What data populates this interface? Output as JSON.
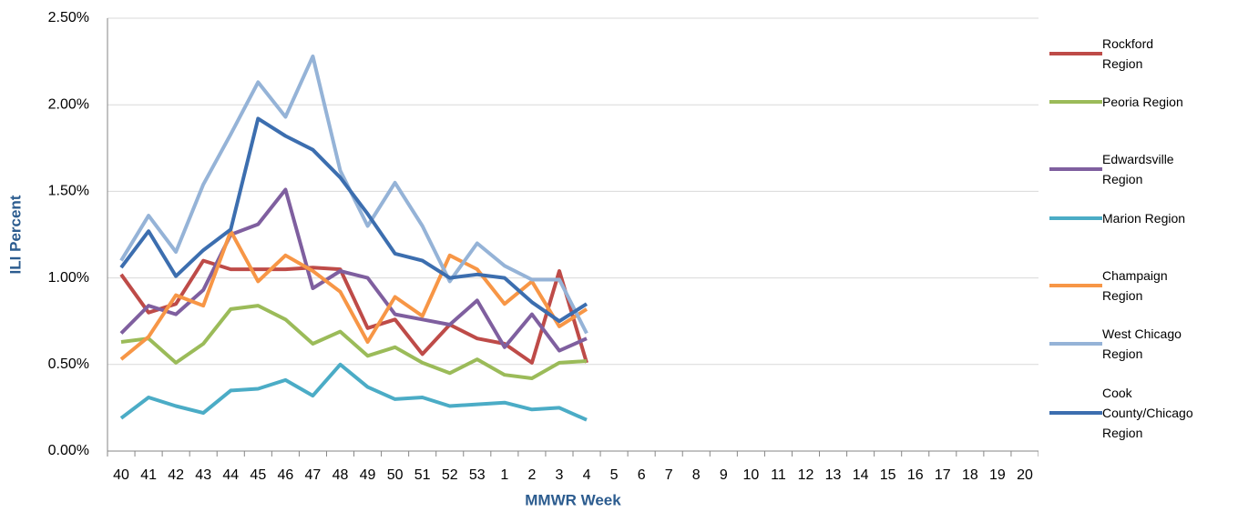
{
  "chart_data": {
    "type": "line",
    "x_label": "MMWR Week",
    "y_label": "ILI Percent",
    "categories": [
      "40",
      "41",
      "42",
      "43",
      "44",
      "45",
      "46",
      "47",
      "48",
      "49",
      "50",
      "51",
      "52",
      "53",
      "1",
      "2",
      "3",
      "4",
      "5",
      "6",
      "7",
      "8",
      "9",
      "10",
      "11",
      "12",
      "13",
      "14",
      "15",
      "16",
      "17",
      "18",
      "19",
      "20"
    ],
    "ylim": [
      0,
      2.5
    ],
    "yticks": [
      {
        "value": 0,
        "label": "0.00%"
      },
      {
        "value": 0.5,
        "label": "0.50%"
      },
      {
        "value": 1,
        "label": "1.00%"
      },
      {
        "value": 1.5,
        "label": "1.50%"
      },
      {
        "value": 2,
        "label": "2.00%"
      },
      {
        "value": 2.5,
        "label": "2.50%"
      }
    ],
    "grid": true,
    "legend": "right",
    "series": [
      {
        "name": "Rockford Region",
        "color": "#be4b48",
        "values": [
          1.02,
          0.8,
          0.85,
          1.1,
          1.05,
          1.05,
          1.05,
          1.06,
          1.05,
          0.71,
          0.76,
          0.56,
          0.73,
          0.65,
          0.62,
          0.51,
          1.04,
          0.51,
          null,
          null,
          null,
          null,
          null,
          null,
          null,
          null,
          null,
          null,
          null,
          null,
          null,
          null,
          null,
          null
        ]
      },
      {
        "name": "Peoria Region",
        "color": "#9bbb59",
        "values": [
          0.63,
          0.65,
          0.51,
          0.62,
          0.82,
          0.84,
          0.76,
          0.62,
          0.69,
          0.55,
          0.6,
          0.51,
          0.45,
          0.53,
          0.44,
          0.42,
          0.51,
          0.52,
          null,
          null,
          null,
          null,
          null,
          null,
          null,
          null,
          null,
          null,
          null,
          null,
          null,
          null,
          null,
          null
        ]
      },
      {
        "name": "Edwardsville Region",
        "color": "#7f5f9f",
        "values": [
          0.68,
          0.84,
          0.79,
          0.93,
          1.25,
          1.31,
          1.51,
          0.94,
          1.04,
          1.0,
          0.79,
          0.76,
          0.73,
          0.87,
          0.6,
          0.79,
          0.58,
          0.65,
          null,
          null,
          null,
          null,
          null,
          null,
          null,
          null,
          null,
          null,
          null,
          null,
          null,
          null,
          null,
          null
        ]
      },
      {
        "name": "Marion Region",
        "color": "#4bacc6",
        "values": [
          0.19,
          0.31,
          0.26,
          0.22,
          0.35,
          0.36,
          0.41,
          0.32,
          0.5,
          0.37,
          0.3,
          0.31,
          0.26,
          0.27,
          0.28,
          0.24,
          0.25,
          0.18,
          null,
          null,
          null,
          null,
          null,
          null,
          null,
          null,
          null,
          null,
          null,
          null,
          null,
          null,
          null,
          null
        ]
      },
      {
        "name": "Champaign Region",
        "color": "#f79646",
        "values": [
          0.53,
          0.66,
          0.9,
          0.84,
          1.27,
          0.98,
          1.13,
          1.04,
          0.92,
          0.63,
          0.89,
          0.78,
          1.13,
          1.05,
          0.85,
          0.98,
          0.72,
          0.82,
          null,
          null,
          null,
          null,
          null,
          null,
          null,
          null,
          null,
          null,
          null,
          null,
          null,
          null,
          null,
          null
        ]
      },
      {
        "name": "West Chicago Region",
        "color": "#95b3d7",
        "values": [
          1.1,
          1.36,
          1.15,
          1.54,
          1.83,
          2.13,
          1.93,
          2.28,
          1.62,
          1.3,
          1.55,
          1.3,
          0.98,
          1.2,
          1.07,
          0.99,
          0.99,
          0.68,
          null,
          null,
          null,
          null,
          null,
          null,
          null,
          null,
          null,
          null,
          null,
          null,
          null,
          null,
          null,
          null
        ]
      },
      {
        "name": "Cook County/Chicago Region",
        "color": "#3c6eaf",
        "values": [
          1.06,
          1.27,
          1.01,
          1.16,
          1.28,
          1.92,
          1.82,
          1.74,
          1.58,
          1.37,
          1.14,
          1.1,
          1.0,
          1.02,
          1.0,
          0.86,
          0.75,
          0.85,
          null,
          null,
          null,
          null,
          null,
          null,
          null,
          null,
          null,
          null,
          null,
          null,
          null,
          null,
          null,
          null
        ]
      }
    ]
  }
}
